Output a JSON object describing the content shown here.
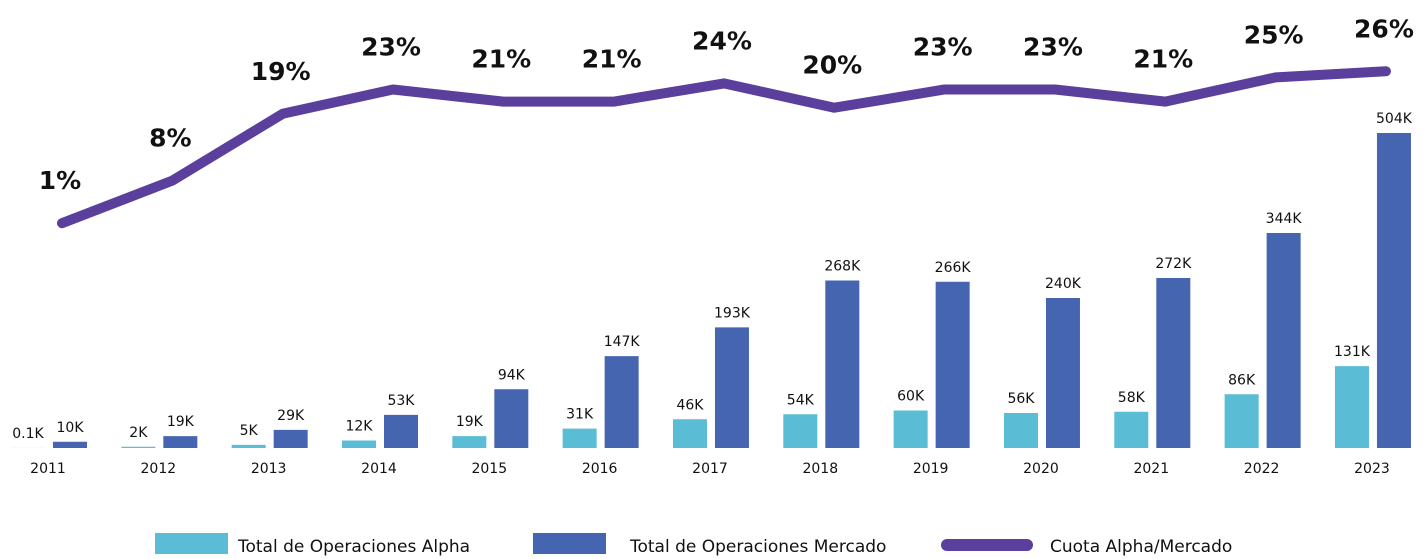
{
  "chart_data": {
    "type": "bar",
    "categories": [
      "2011",
      "2012",
      "2013",
      "2014",
      "2015",
      "2016",
      "2017",
      "2018",
      "2019",
      "2020",
      "2021",
      "2022",
      "2023"
    ],
    "ylim": [
      0,
      700
    ],
    "y2lim": [
      -36,
      36
    ],
    "series": [
      {
        "name": "Total de Operaciones Alpha",
        "color": "#5bbcd6",
        "values": [
          0.1,
          2,
          5,
          12,
          19,
          31,
          46,
          54,
          60,
          56,
          58,
          86,
          131
        ],
        "value_labels": [
          "0.1K",
          "2K",
          "5K",
          "12K",
          "19K",
          "31K",
          "46K",
          "54K",
          "60K",
          "56K",
          "58K",
          "86K",
          "131K"
        ]
      },
      {
        "name": "Total de Operaciones Mercado",
        "color": "#4565b0",
        "values": [
          10,
          19,
          29,
          53,
          94,
          147,
          193,
          268,
          266,
          240,
          272,
          344,
          504
        ],
        "value_labels": [
          "10K",
          "19K",
          "29K",
          "53K",
          "94K",
          "147K",
          "193K",
          "268K",
          "266K",
          "240K",
          "272K",
          "344K",
          "504K"
        ]
      },
      {
        "name": "Cuota Alpha/Mercado",
        "color": "#5b3f9c",
        "type": "line",
        "axis": "y2",
        "values": [
          1,
          8,
          19,
          23,
          21,
          21,
          24,
          20,
          23,
          23,
          21,
          25,
          26
        ],
        "value_labels": [
          "1%",
          "8%",
          "19%",
          "23%",
          "21%",
          "21%",
          "24%",
          "20%",
          "23%",
          "23%",
          "21%",
          "25%",
          "26%"
        ]
      }
    ]
  }
}
